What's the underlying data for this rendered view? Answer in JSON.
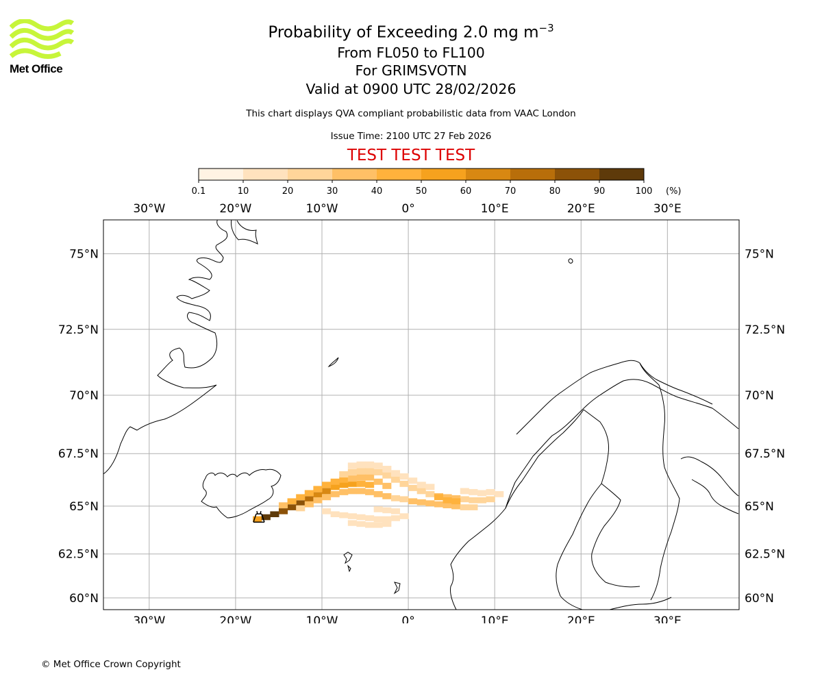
{
  "branding": {
    "logo_text": "Met Office",
    "logo_color": "#c7f53a"
  },
  "header": {
    "title_prefix": "Probability of Exceeding 2.0 mg m",
    "title_superscript": "−3",
    "levels": "From FL050 to FL100",
    "volcano": "For GRIMSVOTN",
    "valid": "Valid at 0900 UTC 28/02/2026",
    "disclaimer": "This chart displays QVA compliant probabilistic data from VAAC London",
    "issue_time": "Issue Time: 2100 UTC 27 Feb 2026",
    "test_banner": "TEST TEST TEST",
    "test_color": "#dd0000"
  },
  "colorbar": {
    "ticks": [
      "0.1",
      "10",
      "20",
      "30",
      "40",
      "50",
      "60",
      "70",
      "80",
      "90",
      "100"
    ],
    "unit": "(%)",
    "colors": [
      "#fff3e3",
      "#ffe2be",
      "#ffd59a",
      "#ffc066",
      "#ffb23c",
      "#f6a21e",
      "#d88812",
      "#b86e0a",
      "#8c5208",
      "#5e3a0a"
    ]
  },
  "map": {
    "lon_labels": [
      "30°W",
      "20°W",
      "10°W",
      "0°",
      "10°E",
      "20°E",
      "30°E"
    ],
    "lat_labels": [
      "75°N",
      "72.5°N",
      "70°N",
      "67.5°N",
      "65°N",
      "62.5°N",
      "60°N"
    ],
    "extent": {
      "lon_min": -35.3,
      "lon_max": 38.3,
      "lat_min": 59.3,
      "lat_max": 76.0
    },
    "volcano_marker": {
      "lon": -17.3,
      "lat": 64.4
    },
    "plume_cells": [
      [
        -17.5,
        64.35,
        5
      ],
      [
        -16.5,
        64.45,
        9
      ],
      [
        -15.5,
        64.6,
        9
      ],
      [
        -14.5,
        64.75,
        8
      ],
      [
        -13.5,
        64.95,
        8
      ],
      [
        -12.5,
        65.15,
        8
      ],
      [
        -11.5,
        65.35,
        7
      ],
      [
        -10.5,
        65.55,
        6
      ],
      [
        -9.5,
        65.75,
        6
      ],
      [
        -8.5,
        65.95,
        5
      ],
      [
        -7.5,
        66.05,
        5
      ],
      [
        -6.5,
        66.1,
        5
      ],
      [
        -5.5,
        66.1,
        4
      ],
      [
        -4.5,
        66.05,
        4
      ],
      [
        -14.5,
        65.05,
        3
      ],
      [
        -13.5,
        65.25,
        4
      ],
      [
        -12.5,
        65.45,
        4
      ],
      [
        -11.5,
        65.65,
        4
      ],
      [
        -10.5,
        65.85,
        4
      ],
      [
        -9.5,
        66.05,
        4
      ],
      [
        -8.5,
        66.2,
        4
      ],
      [
        -7.5,
        66.3,
        4
      ],
      [
        -6.5,
        66.35,
        3
      ],
      [
        -5.5,
        66.4,
        3
      ],
      [
        -4.5,
        66.4,
        3
      ],
      [
        -3.5,
        66.2,
        3
      ],
      [
        -2.5,
        66.0,
        3
      ],
      [
        -12.5,
        64.9,
        2
      ],
      [
        -11.5,
        65.1,
        3
      ],
      [
        -10.5,
        65.3,
        3
      ],
      [
        -9.5,
        65.45,
        3
      ],
      [
        -8.5,
        65.6,
        3
      ],
      [
        -7.5,
        65.7,
        3
      ],
      [
        -6.5,
        65.75,
        3
      ],
      [
        -5.5,
        65.75,
        3
      ],
      [
        -4.5,
        65.7,
        3
      ],
      [
        -3.5,
        65.6,
        3
      ],
      [
        -2.5,
        65.5,
        3
      ],
      [
        -1.5,
        65.4,
        2
      ],
      [
        -0.5,
        65.35,
        2
      ],
      [
        -7.5,
        66.55,
        2
      ],
      [
        -6.5,
        66.65,
        2
      ],
      [
        -5.5,
        66.7,
        2
      ],
      [
        -4.5,
        66.7,
        2
      ],
      [
        -3.5,
        66.65,
        2
      ],
      [
        -2.5,
        66.5,
        2
      ],
      [
        -1.5,
        66.3,
        2
      ],
      [
        -0.5,
        66.1,
        2
      ],
      [
        0.5,
        65.9,
        2
      ],
      [
        1.5,
        65.75,
        2
      ],
      [
        2.5,
        65.6,
        2
      ],
      [
        3.5,
        65.5,
        3
      ],
      [
        4.5,
        65.45,
        3
      ],
      [
        5.5,
        65.4,
        3
      ],
      [
        6.5,
        65.35,
        2
      ],
      [
        7.5,
        65.3,
        2
      ],
      [
        8.5,
        65.3,
        2
      ],
      [
        9.5,
        65.35,
        2
      ],
      [
        0.5,
        65.25,
        3
      ],
      [
        1.5,
        65.2,
        3
      ],
      [
        2.5,
        65.15,
        3
      ],
      [
        3.5,
        65.1,
        3
      ],
      [
        4.5,
        65.05,
        3
      ],
      [
        5.5,
        65.0,
        3
      ],
      [
        6.5,
        64.95,
        2
      ],
      [
        7.5,
        64.95,
        2
      ],
      [
        3.5,
        65.45,
        4
      ],
      [
        4.5,
        65.3,
        4
      ],
      [
        5.5,
        65.25,
        4
      ],
      [
        -9.5,
        64.75,
        1
      ],
      [
        -8.5,
        64.6,
        1
      ],
      [
        -7.5,
        64.55,
        1
      ],
      [
        -6.5,
        64.5,
        1
      ],
      [
        -5.5,
        64.45,
        1
      ],
      [
        -4.5,
        64.4,
        1
      ],
      [
        -3.5,
        64.35,
        1
      ],
      [
        -2.5,
        64.35,
        1
      ],
      [
        -1.5,
        64.4,
        1
      ],
      [
        -0.5,
        64.5,
        1
      ],
      [
        -6.5,
        64.15,
        1
      ],
      [
        -5.5,
        64.1,
        1
      ],
      [
        -4.5,
        64.05,
        1
      ],
      [
        -3.5,
        64.05,
        1
      ],
      [
        -2.5,
        64.1,
        1
      ],
      [
        -6.5,
        66.95,
        1
      ],
      [
        -5.5,
        67.0,
        1
      ],
      [
        -4.5,
        67.0,
        1
      ],
      [
        -3.5,
        66.95,
        1
      ],
      [
        -2.5,
        66.8,
        1
      ],
      [
        -1.5,
        66.6,
        1
      ],
      [
        -0.5,
        66.45,
        1
      ],
      [
        0.5,
        66.25,
        1
      ],
      [
        1.5,
        66.05,
        1
      ],
      [
        2.5,
        65.95,
        1
      ],
      [
        6.5,
        65.75,
        1
      ],
      [
        7.5,
        65.7,
        1
      ],
      [
        8.5,
        65.65,
        1
      ],
      [
        9.5,
        65.7,
        1
      ],
      [
        10.5,
        65.6,
        1
      ],
      [
        -3.5,
        64.85,
        1
      ],
      [
        -2.5,
        64.8,
        1
      ],
      [
        -1.5,
        64.75,
        1
      ]
    ]
  },
  "footer": {
    "copyright": "© Met Office Crown Copyright"
  }
}
